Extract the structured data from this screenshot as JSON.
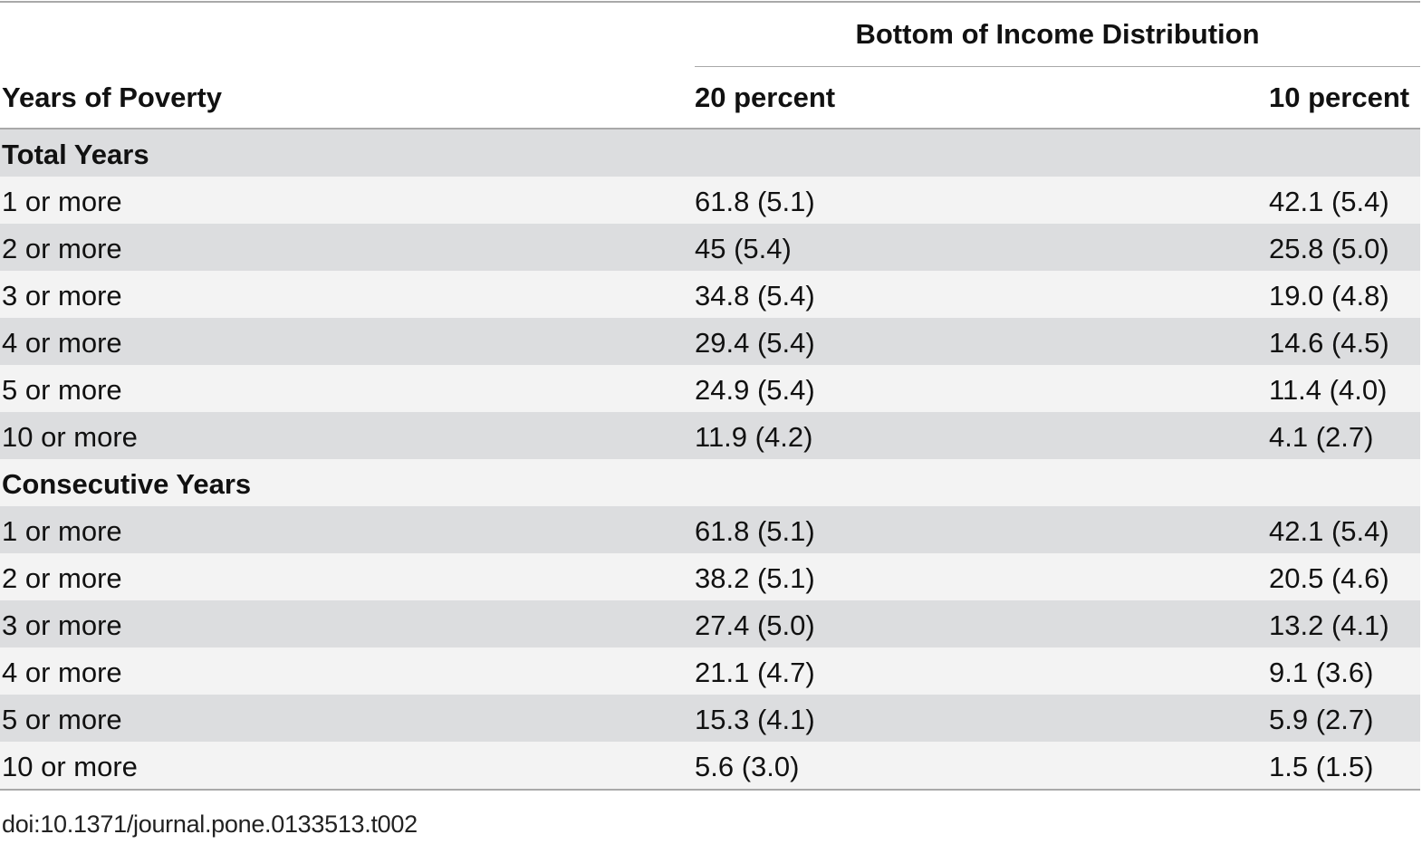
{
  "table": {
    "group_header": "Bottom of Income Distribution",
    "columns": [
      "Years of Poverty",
      "20 percent",
      "10 percent"
    ],
    "sections": [
      {
        "title": "Total Years",
        "rows": [
          [
            "1 or more",
            "61.8 (5.1)",
            "42.1 (5.4)"
          ],
          [
            "2 or more",
            "45 (5.4)",
            "25.8 (5.0)"
          ],
          [
            "3 or more",
            "34.8 (5.4)",
            "19.0 (4.8)"
          ],
          [
            "4 or more",
            "29.4 (5.4)",
            "14.6 (4.5)"
          ],
          [
            "5 or more",
            "24.9 (5.4)",
            "11.4 (4.0)"
          ],
          [
            "10 or more",
            "11.9 (4.2)",
            "4.1 (2.7)"
          ]
        ]
      },
      {
        "title": "Consecutive Years",
        "rows": [
          [
            "1 or more",
            "61.8 (5.1)",
            "42.1 (5.4)"
          ],
          [
            "2 or more",
            "38.2 (5.1)",
            "20.5 (4.6)"
          ],
          [
            "3 or more",
            "27.4 (5.0)",
            "13.2 (4.1)"
          ],
          [
            "4 or more",
            "21.1 (4.7)",
            "9.1 (3.6)"
          ],
          [
            "5 or more",
            "15.3 (4.1)",
            "5.9 (2.7)"
          ],
          [
            "10 or more",
            "5.6 (3.0)",
            "1.5 (1.5)"
          ]
        ]
      }
    ]
  },
  "footer": {
    "doi": "doi:10.1371/journal.pone.0133513.t002"
  }
}
